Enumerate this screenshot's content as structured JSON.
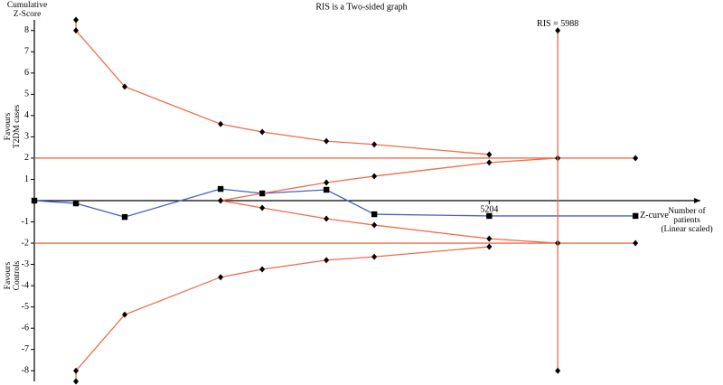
{
  "chart_data": {
    "type": "line",
    "title": "RIS is a Two-sided graph",
    "y_label": [
      "Cumulative",
      "Z-Score"
    ],
    "x_label": [
      "Number of",
      "patients",
      "(Linear scaled)"
    ],
    "favour_upper": [
      "Favours",
      "T2DM cases"
    ],
    "favour_lower": [
      "Favours",
      "Controls"
    ],
    "ris_label": "RIS = 5988",
    "xlim": [
      0,
      7620
    ],
    "ylim": [
      -8.5,
      8.5
    ],
    "xticks": [
      5204
    ],
    "yticks": [
      8,
      7,
      6,
      5,
      4,
      3,
      2,
      1,
      -1,
      -2,
      -3,
      -4,
      -5,
      -6,
      -7,
      -8
    ],
    "series": [
      {
        "name": "Z-curve",
        "color": "#4a5fc4",
        "marker": "square",
        "x": [
          0,
          476,
          1034,
          2131,
          2607,
          3341,
          3889,
          5204,
          6877
        ],
        "values": [
          0,
          -0.13,
          -0.77,
          0.55,
          0.34,
          0.51,
          -0.64,
          -0.72,
          -0.72
        ]
      },
      {
        "color": "#f26b4a",
        "marker": "diamond",
        "x": [
          476,
          476,
          1034,
          2131,
          2607,
          3341,
          3889,
          5204
        ],
        "values": [
          8.5,
          8,
          5.36,
          3.6,
          3.23,
          2.8,
          2.64,
          2.17
        ]
      },
      {
        "color": "#f26b4a",
        "marker": "diamond",
        "x": [
          476,
          476,
          1034,
          2131,
          2607,
          3341,
          3889,
          5204
        ],
        "values": [
          -8.5,
          -8,
          -5.36,
          -3.6,
          -3.23,
          -2.8,
          -2.64,
          -2.17
        ]
      },
      {
        "color": "#f26b4a",
        "marker": "diamond",
        "x": [
          2131,
          2607,
          3341,
          3889,
          5204,
          5988
        ],
        "values": [
          0,
          0.34,
          0.85,
          1.15,
          1.79,
          2
        ]
      },
      {
        "color": "#f26b4a",
        "marker": "diamond",
        "x": [
          2131,
          2607,
          3341,
          3889,
          5204,
          5988
        ],
        "values": [
          0,
          -0.34,
          -0.85,
          -1.15,
          -1.79,
          -2
        ]
      },
      {
        "color": "#f26b4a",
        "marker": "diamond",
        "extend_left": true,
        "x": [
          5988,
          6877
        ],
        "values": [
          2,
          2
        ]
      },
      {
        "color": "#f26b4a",
        "marker": "diamond",
        "extend_left": true,
        "x": [
          5988,
          6877
        ],
        "values": [
          -2,
          -2
        ]
      },
      {
        "color": "#f26b4a",
        "marker": "diamond",
        "x": [
          5988,
          5988
        ],
        "values": [
          8,
          -8
        ]
      }
    ]
  }
}
